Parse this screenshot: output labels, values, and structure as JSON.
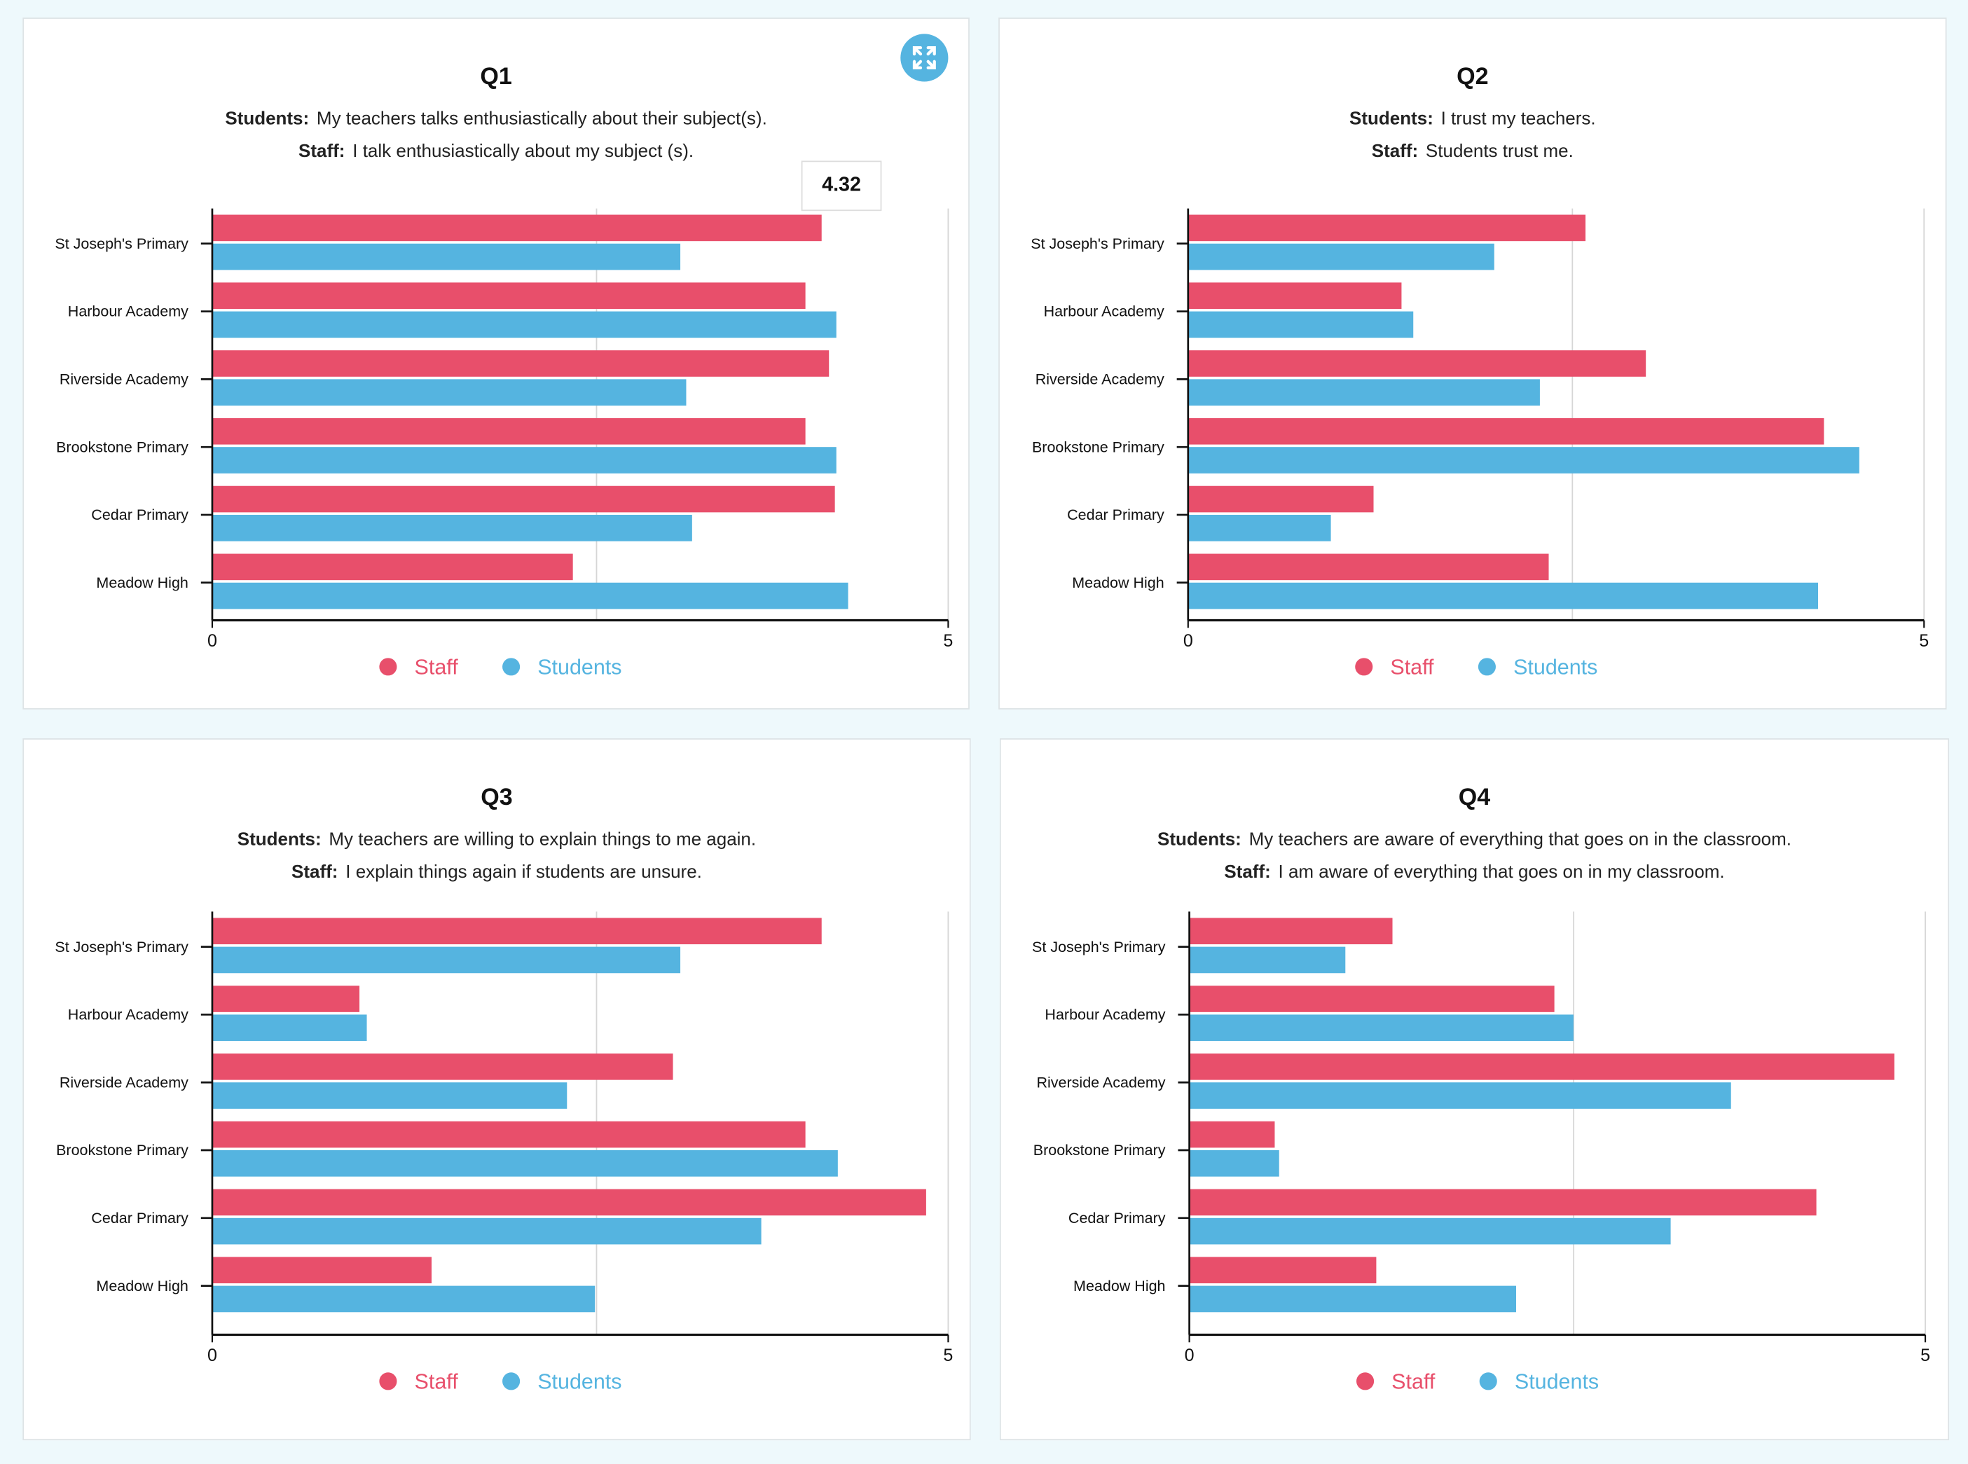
{
  "colors": {
    "staff": "#e84f6b",
    "students": "#55b4e0",
    "background": "#eef9fc"
  },
  "expand_icon": "expand-arrows-icon",
  "tooltip": {
    "value": "4.32"
  },
  "chart_data": [
    {
      "type": "bar",
      "orientation": "horizontal",
      "title": "Q1",
      "students_label": "Students:",
      "students_text": "My teachers talks enthusiastically about their subject(s).",
      "staff_label": "Staff:",
      "staff_text": "I talk enthusiastically about my subject (s).",
      "categories": [
        "St Joseph's Primary",
        "Harbour Academy",
        "Riverside Academy",
        "Brookstone Primary",
        "Cedar Primary",
        "Meadow High"
      ],
      "xlim": [
        0,
        5
      ],
      "xticks": [
        "0",
        "5"
      ],
      "legend": "bottom",
      "series": [
        {
          "name": "Staff",
          "values": [
            4.14,
            4.03,
            4.19,
            4.03,
            4.23,
            2.45
          ]
        },
        {
          "name": "Students",
          "values": [
            3.18,
            4.24,
            3.22,
            4.24,
            3.26,
            4.32
          ]
        }
      ]
    },
    {
      "type": "bar",
      "orientation": "horizontal",
      "title": "Q2",
      "students_label": "Students:",
      "students_text": "I trust my teachers.",
      "staff_label": "Staff:",
      "staff_text": "Students trust me.",
      "categories": [
        "St Joseph's Primary",
        "Harbour Academy",
        "Riverside Academy",
        "Brookstone Primary",
        "Cedar Primary",
        "Meadow High"
      ],
      "xlim": [
        0,
        5
      ],
      "xticks": [
        "0",
        "5"
      ],
      "legend": "bottom",
      "series": [
        {
          "name": "Staff",
          "values": [
            2.7,
            1.45,
            3.11,
            4.32,
            1.26,
            2.45
          ]
        },
        {
          "name": "Students",
          "values": [
            2.08,
            1.53,
            2.39,
            4.56,
            0.97,
            4.28
          ]
        }
      ]
    },
    {
      "type": "bar",
      "orientation": "horizontal",
      "title": "Q3",
      "students_label": "Students:",
      "students_text": "My teachers are willing to explain things to me again.",
      "staff_label": "Staff:",
      "staff_text": "I explain things again if students are unsure.",
      "categories": [
        "St Joseph's Primary",
        "Harbour Academy",
        "Riverside Academy",
        "Brookstone Primary",
        "Cedar Primary",
        "Meadow High"
      ],
      "xlim": [
        0,
        5
      ],
      "xticks": [
        "0",
        "5"
      ],
      "legend": "bottom",
      "series": [
        {
          "name": "Staff",
          "values": [
            4.14,
            1.0,
            3.13,
            4.03,
            4.85,
            1.49
          ]
        },
        {
          "name": "Students",
          "values": [
            3.18,
            1.05,
            2.41,
            4.25,
            3.73,
            2.6
          ]
        }
      ]
    },
    {
      "type": "bar",
      "orientation": "horizontal",
      "title": "Q4",
      "students_label": "Students:",
      "students_text": "My teachers are aware of everything that goes on in the classroom.",
      "staff_label": "Staff:",
      "staff_text": "I am aware of everything that goes on in my classroom.",
      "categories": [
        "St Joseph's Primary",
        "Harbour Academy",
        "Riverside Academy",
        "Brookstone Primary",
        "Cedar Primary",
        "Meadow High"
      ],
      "xlim": [
        0,
        5
      ],
      "xticks": [
        "0",
        "5"
      ],
      "legend": "bottom",
      "series": [
        {
          "name": "Staff",
          "values": [
            1.38,
            2.48,
            4.79,
            0.58,
            4.26,
            1.27
          ]
        },
        {
          "name": "Students",
          "values": [
            1.06,
            2.61,
            3.68,
            0.61,
            3.27,
            2.22
          ]
        }
      ]
    }
  ]
}
